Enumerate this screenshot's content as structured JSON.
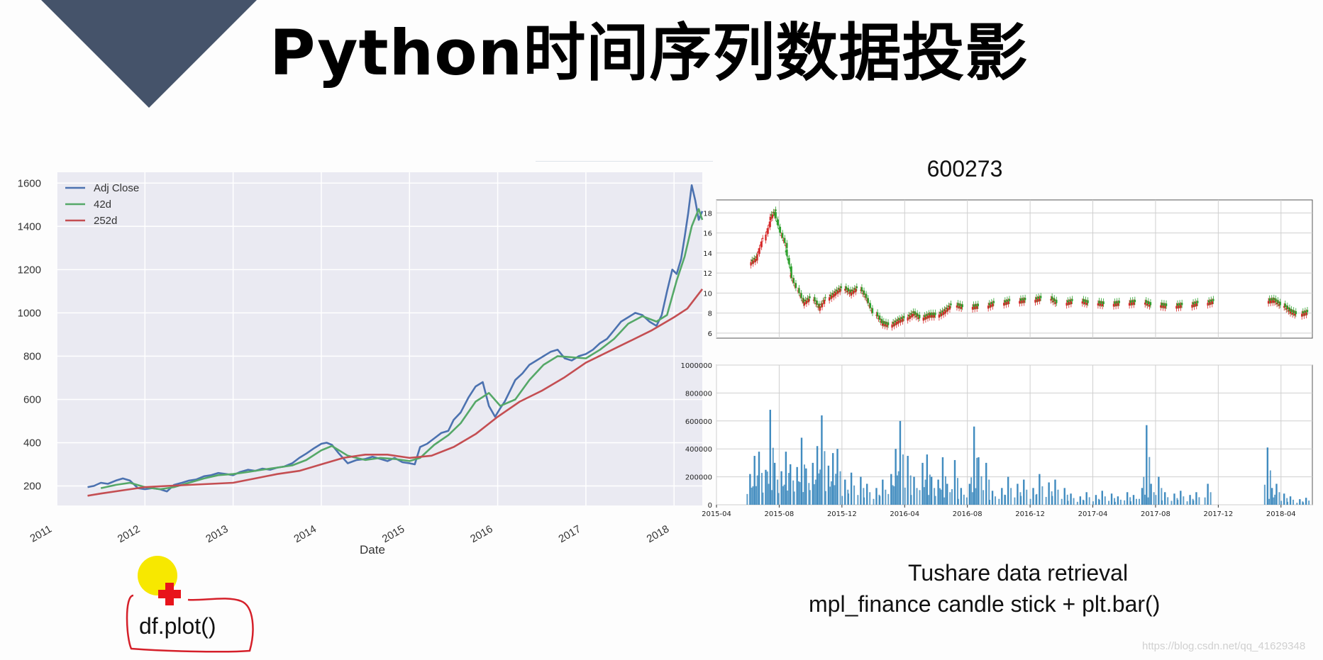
{
  "slide": {
    "title": "Python时间序列数据投影",
    "caption_line1": "Tushare data retrieval",
    "caption_line2": "mpl_finance candle stick  + plt.bar()",
    "code_label": "df.plot()",
    "watermark": "https://blog.csdn.net/qq_41629348",
    "colors": {
      "triangle": "#45536a",
      "cursor_highlight": "#f7e800",
      "cursor_cross": "#e8141b",
      "annotation_stroke": "#d5202a"
    }
  },
  "chart_data": [
    {
      "type": "line",
      "xlabel": "Date",
      "ylabel": "",
      "xlim": [
        2011.0,
        2018.32
      ],
      "ylim": [
        110,
        1650
      ],
      "xticks": [
        "2011",
        "2012",
        "2013",
        "2014",
        "2015",
        "2016",
        "2017",
        "2018"
      ],
      "yticks": [
        200,
        400,
        600,
        800,
        1000,
        1200,
        1400,
        1600
      ],
      "grid": true,
      "legend_placement": "top-left",
      "series": [
        {
          "name": "Adj Close",
          "color": "#4c72b0",
          "x": [
            2011.35,
            2011.42,
            2011.5,
            2011.58,
            2011.67,
            2011.75,
            2011.83,
            2011.92,
            2012.0,
            2012.08,
            2012.17,
            2012.25,
            2012.33,
            2012.42,
            2012.5,
            2012.58,
            2012.67,
            2012.75,
            2012.83,
            2012.92,
            2013.0,
            2013.08,
            2013.17,
            2013.25,
            2013.33,
            2013.42,
            2013.5,
            2013.58,
            2013.67,
            2013.75,
            2013.83,
            2013.92,
            2014.0,
            2014.06,
            2014.12,
            2014.2,
            2014.3,
            2014.4,
            2014.5,
            2014.58,
            2014.67,
            2014.75,
            2014.83,
            2014.92,
            2015.0,
            2015.06,
            2015.12,
            2015.2,
            2015.28,
            2015.36,
            2015.44,
            2015.5,
            2015.58,
            2015.67,
            2015.75,
            2015.83,
            2015.9,
            2015.97,
            2016.03,
            2016.08,
            2016.14,
            2016.2,
            2016.28,
            2016.36,
            2016.44,
            2016.52,
            2016.6,
            2016.68,
            2016.76,
            2016.84,
            2016.92,
            2017.0,
            2017.08,
            2017.16,
            2017.24,
            2017.32,
            2017.4,
            2017.48,
            2017.56,
            2017.64,
            2017.72,
            2017.8,
            2017.86,
            2017.92,
            2017.98,
            2018.03,
            2018.08,
            2018.12,
            2018.16,
            2018.2,
            2018.24,
            2018.28,
            2018.32
          ],
          "values": [
            195,
            200,
            215,
            210,
            225,
            235,
            225,
            190,
            185,
            190,
            185,
            175,
            205,
            215,
            225,
            230,
            245,
            250,
            260,
            255,
            250,
            265,
            275,
            270,
            280,
            275,
            285,
            290,
            305,
            330,
            350,
            375,
            395,
            400,
            390,
            350,
            305,
            320,
            325,
            335,
            325,
            315,
            330,
            310,
            305,
            300,
            380,
            395,
            420,
            445,
            455,
            505,
            540,
            610,
            660,
            680,
            570,
            520,
            560,
            590,
            640,
            690,
            720,
            760,
            780,
            800,
            820,
            830,
            790,
            780,
            800,
            810,
            830,
            860,
            880,
            920,
            960,
            980,
            1000,
            990,
            960,
            940,
            990,
            1100,
            1200,
            1180,
            1250,
            1350,
            1460,
            1590,
            1520,
            1430,
            1470
          ]
        },
        {
          "name": "42d",
          "color": "#55a868",
          "x": [
            2011.5,
            2011.67,
            2011.83,
            2012.0,
            2012.17,
            2012.33,
            2012.5,
            2012.67,
            2012.83,
            2013.0,
            2013.17,
            2013.33,
            2013.5,
            2013.67,
            2013.83,
            2014.0,
            2014.12,
            2014.3,
            2014.5,
            2014.67,
            2014.83,
            2015.0,
            2015.12,
            2015.28,
            2015.44,
            2015.58,
            2015.75,
            2015.9,
            2016.03,
            2016.2,
            2016.36,
            2016.52,
            2016.68,
            2016.84,
            2017.0,
            2017.16,
            2017.32,
            2017.48,
            2017.64,
            2017.8,
            2017.92,
            2018.03,
            2018.12,
            2018.2,
            2018.28,
            2018.32
          ],
          "values": [
            190,
            205,
            215,
            195,
            185,
            195,
            215,
            235,
            250,
            255,
            265,
            275,
            285,
            295,
            320,
            365,
            385,
            340,
            320,
            330,
            325,
            315,
            330,
            390,
            435,
            490,
            590,
            630,
            570,
            600,
            690,
            760,
            800,
            795,
            790,
            830,
            880,
            950,
            985,
            960,
            990,
            1150,
            1260,
            1400,
            1480,
            1430
          ]
        },
        {
          "name": "252d",
          "color": "#c44e52",
          "x": [
            2011.35,
            2011.5,
            2011.75,
            2012.0,
            2012.25,
            2012.5,
            2012.75,
            2013.0,
            2013.25,
            2013.5,
            2013.75,
            2014.0,
            2014.25,
            2014.5,
            2014.75,
            2015.0,
            2015.25,
            2015.5,
            2015.75,
            2016.0,
            2016.25,
            2016.5,
            2016.75,
            2017.0,
            2017.25,
            2017.5,
            2017.75,
            2018.0,
            2018.15,
            2018.32
          ],
          "values": [
            155,
            165,
            180,
            195,
            200,
            205,
            210,
            215,
            235,
            255,
            270,
            300,
            330,
            345,
            345,
            330,
            340,
            380,
            440,
            520,
            590,
            640,
            700,
            770,
            820,
            870,
            920,
            980,
            1020,
            1110
          ]
        }
      ]
    },
    {
      "type": "candlestick",
      "title": "600273",
      "ylim": [
        5.5,
        19.3
      ],
      "yticks": [
        6,
        8,
        10,
        12,
        14,
        16,
        18
      ],
      "grid": true,
      "xlim": [
        "2015-04",
        "2018-06"
      ],
      "xticks": [
        "2015-04",
        "2015-08",
        "2015-12",
        "2016-04",
        "2016-08",
        "2016-12",
        "2017-04",
        "2017-08",
        "2017-12",
        "2018-04"
      ],
      "colors": {
        "up": "#d62728",
        "down": "#2ca02c"
      },
      "price_path": [
        [
          "2015-06",
          13.5
        ],
        [
          "2015-06",
          15.5
        ],
        [
          "2015-07",
          17.5
        ],
        [
          "2015-07",
          18.2
        ],
        [
          "2015-07",
          16.0
        ],
        [
          "2015-08",
          14.5
        ],
        [
          "2015-08",
          12.0
        ],
        [
          "2015-08",
          10.5
        ],
        [
          "2015-09",
          9.0
        ],
        [
          "2015-09",
          9.5
        ],
        [
          "2015-10",
          8.5
        ],
        [
          "2015-10",
          9.5
        ],
        [
          "2015-11",
          10.0
        ],
        [
          "2015-11",
          10.5
        ],
        [
          "2015-12",
          10.0
        ],
        [
          "2015-12",
          10.5
        ],
        [
          "2016-01",
          9.5
        ],
        [
          "2016-01",
          8.0
        ],
        [
          "2016-02",
          7.0
        ],
        [
          "2016-02",
          6.8
        ],
        [
          "2016-03",
          7.2
        ],
        [
          "2016-03",
          7.5
        ],
        [
          "2016-04",
          8.0
        ],
        [
          "2016-04",
          7.5
        ],
        [
          "2016-05",
          7.8
        ],
        [
          "2016-05",
          7.8
        ],
        [
          "2016-06",
          8.2
        ],
        [
          "2016-06",
          8.8
        ],
        [
          "2016-07",
          8.6
        ],
        [
          "2016-08",
          8.7
        ],
        [
          "2016-09",
          9.0
        ],
        [
          "2016-10",
          9.2
        ],
        [
          "2016-11",
          9.3
        ],
        [
          "2016-12",
          9.5
        ],
        [
          "2017-01",
          9.0
        ],
        [
          "2017-02",
          9.2
        ],
        [
          "2017-03",
          9.0
        ],
        [
          "2017-04",
          8.9
        ],
        [
          "2017-05",
          9.0
        ],
        [
          "2017-06",
          9.1
        ],
        [
          "2017-07",
          8.8
        ],
        [
          "2017-08",
          8.7
        ],
        [
          "2017-09",
          8.8
        ],
        [
          "2017-10",
          9.0
        ],
        [
          "2017-11",
          9.2
        ],
        [
          "2018-03",
          9.3
        ],
        [
          "2018-03",
          8.8
        ],
        [
          "2018-04",
          8.2
        ],
        [
          "2018-04",
          7.9
        ],
        [
          "2018-05",
          8.1
        ]
      ]
    },
    {
      "type": "bar",
      "ylim": [
        0,
        1000000
      ],
      "yticks": [
        0,
        200000,
        400000,
        600000,
        800000,
        1000000
      ],
      "grid": true,
      "color": "#1f77b4",
      "xlim": [
        "2015-04",
        "2018-06"
      ],
      "xticks": [
        "2015-04",
        "2015-08",
        "2015-12",
        "2016-04",
        "2016-08",
        "2016-12",
        "2017-04",
        "2017-08",
        "2017-12",
        "2018-04"
      ],
      "bars": [
        [
          "2015-06",
          220000
        ],
        [
          "2015-06",
          350000
        ],
        [
          "2015-06",
          380000
        ],
        [
          "2015-07",
          250000
        ],
        [
          "2015-07",
          680000
        ],
        [
          "2015-07",
          300000
        ],
        [
          "2015-08",
          240000
        ],
        [
          "2015-08",
          380000
        ],
        [
          "2015-08",
          290000
        ],
        [
          "2015-09",
          270000
        ],
        [
          "2015-09",
          480000
        ],
        [
          "2015-09",
          260000
        ],
        [
          "2015-10",
          300000
        ],
        [
          "2015-10",
          420000
        ],
        [
          "2015-10",
          640000
        ],
        [
          "2015-11",
          280000
        ],
        [
          "2015-11",
          370000
        ],
        [
          "2015-11",
          400000
        ],
        [
          "2015-12",
          180000
        ],
        [
          "2015-12",
          230000
        ],
        [
          "2016-01",
          200000
        ],
        [
          "2016-01",
          150000
        ],
        [
          "2016-02",
          120000
        ],
        [
          "2016-02",
          180000
        ],
        [
          "2016-03",
          220000
        ],
        [
          "2016-03",
          400000
        ],
        [
          "2016-03",
          600000
        ],
        [
          "2016-04",
          350000
        ],
        [
          "2016-04",
          200000
        ],
        [
          "2016-05",
          300000
        ],
        [
          "2016-05",
          360000
        ],
        [
          "2016-05",
          200000
        ],
        [
          "2016-06",
          180000
        ],
        [
          "2016-06",
          340000
        ],
        [
          "2016-06",
          150000
        ],
        [
          "2016-07",
          320000
        ],
        [
          "2016-07",
          120000
        ],
        [
          "2016-08",
          150000
        ],
        [
          "2016-08",
          560000
        ],
        [
          "2016-08",
          340000
        ],
        [
          "2016-09",
          300000
        ],
        [
          "2016-09",
          100000
        ],
        [
          "2016-10",
          120000
        ],
        [
          "2016-10",
          200000
        ],
        [
          "2016-11",
          150000
        ],
        [
          "2016-11",
          180000
        ],
        [
          "2016-12",
          120000
        ],
        [
          "2016-12",
          220000
        ],
        [
          "2017-01",
          160000
        ],
        [
          "2017-01",
          180000
        ],
        [
          "2017-02",
          120000
        ],
        [
          "2017-02",
          80000
        ],
        [
          "2017-03",
          60000
        ],
        [
          "2017-03",
          90000
        ],
        [
          "2017-04",
          70000
        ],
        [
          "2017-04",
          100000
        ],
        [
          "2017-05",
          80000
        ],
        [
          "2017-05",
          60000
        ],
        [
          "2017-06",
          90000
        ],
        [
          "2017-06",
          70000
        ],
        [
          "2017-07",
          120000
        ],
        [
          "2017-07",
          570000
        ],
        [
          "2017-07",
          150000
        ],
        [
          "2017-08",
          200000
        ],
        [
          "2017-08",
          90000
        ],
        [
          "2017-09",
          80000
        ],
        [
          "2017-09",
          100000
        ],
        [
          "2017-10",
          70000
        ],
        [
          "2017-10",
          90000
        ],
        [
          "2017-11",
          150000
        ],
        [
          "2018-03",
          410000
        ],
        [
          "2018-03",
          120000
        ],
        [
          "2018-03",
          150000
        ],
        [
          "2018-04",
          80000
        ],
        [
          "2018-04",
          60000
        ],
        [
          "2018-05",
          40000
        ],
        [
          "2018-05",
          50000
        ]
      ]
    }
  ]
}
